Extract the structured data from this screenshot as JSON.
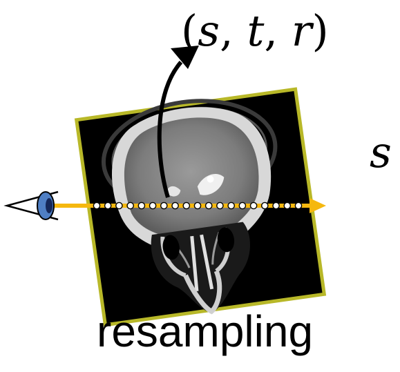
{
  "labels": {
    "coords_open": "(",
    "coord_s": "s",
    "sep1": ", ",
    "coord_t": "t",
    "sep2": ", ",
    "coord_r": "r",
    "coords_close": ")",
    "partial_symbol": "s",
    "caption": "resampling"
  },
  "colors": {
    "ray": "#f5b80f",
    "frame_border": "#b8b828",
    "image_background": "#000000",
    "sample_dot_fill": "#ffffff",
    "eye_iris": "#4f7fc4",
    "arrow": "#000000"
  },
  "icons": {
    "eye": "eye-icon",
    "ct_slice": "ct-skull-slice"
  },
  "sample_count": 19
}
